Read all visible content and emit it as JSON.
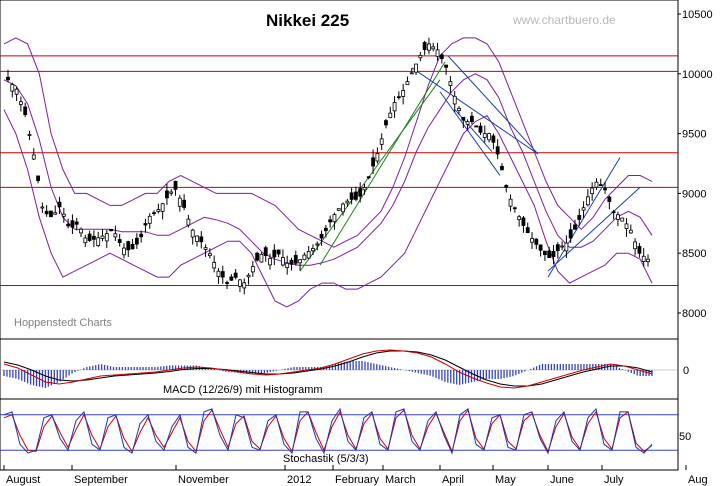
{
  "chart_data": {
    "type": "candlestick",
    "title": "Nikkei 225",
    "watermark": "www.chartbuero.de",
    "credit": "Hoppenstedt Charts",
    "price_axis": {
      "ticks": [
        8000,
        8500,
        9000,
        9500,
        10000,
        10500
      ],
      "range": [
        7950,
        10550
      ]
    },
    "x_labels": [
      "August",
      "September",
      "November",
      "2012",
      "February",
      "March",
      "April",
      "May",
      "June",
      "July",
      "Aug"
    ],
    "horizontal_levels": [
      8230,
      9050,
      9340,
      10020,
      10150
    ],
    "price_close": [
      9950,
      9870,
      9650,
      9300,
      8850,
      8800,
      8900,
      8700,
      8750,
      8600,
      8620,
      8650,
      8700,
      8550,
      8520,
      8600,
      8800,
      8850,
      8950,
      9050,
      8900,
      8700,
      8600,
      8500,
      8350,
      8250,
      8300,
      8250,
      8400,
      8500,
      8450,
      8500,
      8400,
      8420,
      8500,
      8550,
      8650,
      8800,
      8900,
      8950,
      8950,
      9100,
      9300,
      9550,
      9750,
      9850,
      10000,
      10150,
      10250,
      10200,
      10050,
      9800,
      9600,
      9600,
      9500,
      9500,
      9300,
      9000,
      8850,
      8700,
      8600,
      8500,
      8450,
      8550,
      8600,
      8750,
      8950,
      9100,
      9050,
      8850,
      8800,
      8700,
      8500,
      8450
    ],
    "bollinger_upper": [
      10250,
      10300,
      10250,
      10000,
      9500,
      9200,
      9000,
      9000,
      8950,
      8900,
      8900,
      8950,
      9000,
      9000,
      9100,
      9150,
      9100,
      9050,
      9000,
      9000,
      9000,
      9000,
      8950,
      8900,
      8800,
      8700,
      8650,
      8600,
      8550,
      8600,
      8650,
      8750,
      8850,
      9050,
      9300,
      9600,
      9900,
      10150,
      10250,
      10300,
      10300,
      10250,
      10100,
      9850,
      9600,
      9350,
      9100,
      8900,
      8800,
      8700,
      8800,
      8950,
      9050,
      9150,
      9150,
      9100
    ],
    "bollinger_lower": [
      9700,
      9500,
      9200,
      8800,
      8500,
      8300,
      8350,
      8400,
      8450,
      8500,
      8450,
      8400,
      8350,
      8300,
      8300,
      8400,
      8450,
      8500,
      8550,
      8600,
      8600,
      8500,
      8300,
      8100,
      8050,
      8100,
      8200,
      8250,
      8250,
      8200,
      8200,
      8250,
      8300,
      8400,
      8500,
      8700,
      8900,
      9100,
      9300,
      9500,
      9600,
      9650,
      9500,
      9300,
      9100,
      8900,
      8600,
      8350,
      8250,
      8300,
      8350,
      8400,
      8500,
      8500,
      8450,
      8250
    ],
    "bollinger_middle": [
      9950,
      9900,
      9750,
      9450,
      9050,
      8800,
      8700,
      8700,
      8700,
      8700,
      8680,
      8680,
      8680,
      8650,
      8650,
      8700,
      8750,
      8800,
      8780,
      8750,
      8700,
      8600,
      8500,
      8450,
      8420,
      8400,
      8400,
      8420,
      8450,
      8500,
      8550,
      8650,
      8750,
      8900,
      9100,
      9350,
      9550,
      9700,
      9850,
      9950,
      10000,
      9950,
      9800,
      9550,
      9350,
      9100,
      8850,
      8650,
      8550,
      8550,
      8600,
      8700,
      8800,
      8850,
      8800,
      8650
    ],
    "macd": {
      "label": "MACD (12/26/9) mit Histogramm",
      "zero_label": "0",
      "line": [
        0.6,
        0.2,
        -0.5,
        -1.2,
        -1.4,
        -1.2,
        -0.9,
        -0.6,
        -0.5,
        -0.4,
        -0.3,
        -0.2,
        0.0,
        0.2,
        0.3,
        0.2,
        0.0,
        -0.2,
        -0.4,
        -0.5,
        -0.4,
        -0.2,
        0.0,
        0.2,
        0.6,
        1.1,
        1.6,
        1.9,
        2.0,
        1.9,
        1.7,
        1.3,
        0.6,
        -0.2,
        -0.8,
        -1.3,
        -1.7,
        -1.8,
        -1.6,
        -1.2,
        -0.8,
        -0.4,
        0.0,
        0.3,
        0.6,
        0.4,
        0.0,
        -0.4
      ],
      "signal": [
        0.8,
        0.5,
        0.0,
        -0.6,
        -1.0,
        -1.1,
        -1.0,
        -0.8,
        -0.6,
        -0.5,
        -0.4,
        -0.3,
        -0.15,
        0.05,
        0.15,
        0.15,
        0.05,
        -0.1,
        -0.25,
        -0.4,
        -0.4,
        -0.3,
        -0.1,
        0.1,
        0.4,
        0.8,
        1.3,
        1.7,
        1.9,
        1.9,
        1.8,
        1.5,
        1.0,
        0.3,
        -0.4,
        -1.0,
        -1.4,
        -1.6,
        -1.6,
        -1.4,
        -1.0,
        -0.6,
        -0.2,
        0.1,
        0.4,
        0.4,
        0.2,
        -0.2
      ]
    },
    "stochastic": {
      "label": "Stochastik (5/3/3)",
      "tick_label": "50",
      "k": [
        80,
        85,
        30,
        15,
        20,
        75,
        80,
        40,
        20,
        70,
        85,
        30,
        20,
        75,
        80,
        25,
        15,
        65,
        80,
        35,
        20,
        60,
        80,
        25,
        15,
        85,
        90,
        45,
        20,
        80,
        75,
        25,
        20,
        70,
        80,
        30,
        15,
        85,
        85,
        40,
        15,
        70,
        90,
        35,
        20,
        75,
        85,
        30,
        20,
        85,
        90,
        35,
        20,
        70,
        85,
        45,
        15,
        80,
        90,
        30,
        20,
        75,
        80,
        25,
        20,
        80,
        85,
        40,
        15,
        70,
        85,
        35,
        20,
        75,
        90,
        30,
        20,
        85,
        85,
        25,
        15,
        30
      ],
      "d": [
        75,
        80,
        45,
        20,
        18,
        60,
        78,
        50,
        25,
        55,
        80,
        45,
        22,
        60,
        78,
        40,
        18,
        50,
        75,
        45,
        25,
        50,
        75,
        35,
        18,
        70,
        88,
        55,
        25,
        65,
        78,
        35,
        22,
        60,
        78,
        40,
        18,
        70,
        85,
        50,
        20,
        60,
        85,
        45,
        22,
        65,
        82,
        40,
        22,
        75,
        88,
        45,
        22,
        60,
        82,
        50,
        18,
        70,
        88,
        40,
        22,
        65,
        80,
        35,
        22,
        70,
        82,
        45,
        18,
        60,
        82,
        42,
        22,
        65,
        85,
        40,
        22,
        75,
        85,
        32,
        18,
        28
      ]
    }
  }
}
